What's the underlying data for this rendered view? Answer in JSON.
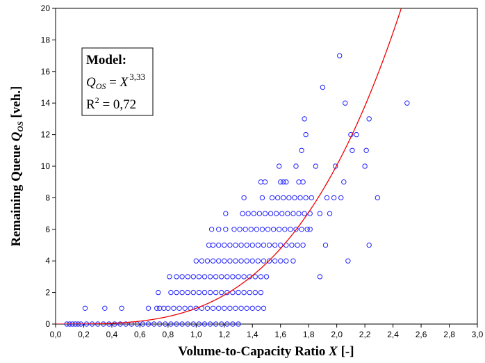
{
  "chart_data": {
    "type": "scatter",
    "xlim": [
      0.0,
      3.0
    ],
    "ylim": [
      0,
      20
    ],
    "x_ticks": [
      0.0,
      0.2,
      0.4,
      0.6,
      0.8,
      1.0,
      1.2,
      1.4,
      1.6,
      1.8,
      2.0,
      2.2,
      2.4,
      2.6,
      2.8,
      3.0
    ],
    "x_tick_labels": [
      "0,0",
      "0,2",
      "0,4",
      "0,6",
      "0,8",
      "1,0",
      "1,2",
      "1,4",
      "1,6",
      "1,8",
      "2,0",
      "2,2",
      "2,4",
      "2,6",
      "2,8",
      "3,0"
    ],
    "y_ticks": [
      0,
      2,
      4,
      6,
      8,
      10,
      12,
      14,
      16,
      18,
      20
    ],
    "y_tick_labels": [
      "0",
      "2",
      "4",
      "6",
      "8",
      "10",
      "12",
      "14",
      "16",
      "18",
      "20"
    ],
    "xlabel": {
      "main": "Volume-to-Capacity Ratio ",
      "var": "X",
      "unit": " [-]"
    },
    "ylabel": {
      "main": "Remaining Queue ",
      "var": "Q",
      "sub": "OS",
      "unit": " [veh.]"
    },
    "grid": false,
    "colors": {
      "points": "#2222ff",
      "curve": "#ee0000",
      "axis": "#000000"
    },
    "model_box": {
      "title": "Model:",
      "lhs": "Q",
      "lhs_sub": "OS",
      "equals": " = ",
      "base": "X",
      "exponent": "3,33",
      "r2_label": "R",
      "r2_sup": "2",
      "r2_value": " = 0,72"
    },
    "series": [
      {
        "type": "fit_curve",
        "equation": "y = x^3.33",
        "exponent": 3.33
      },
      {
        "type": "scatter",
        "x": [
          0.08,
          0.1,
          0.12,
          0.14,
          0.16,
          0.18,
          0.22,
          0.26,
          0.3,
          0.34,
          0.38,
          0.42,
          0.46,
          0.5,
          0.54,
          0.58,
          0.62,
          0.66,
          0.7,
          0.74,
          0.78,
          0.82,
          0.86,
          0.9,
          0.94,
          0.98,
          1.02,
          1.06,
          1.1,
          1.14,
          1.18,
          1.22,
          1.26,
          1.3,
          0.21,
          0.35,
          0.47,
          0.66,
          0.72,
          0.74,
          0.77,
          0.8,
          0.84,
          0.88,
          0.92,
          0.96,
          1.0,
          1.04,
          1.08,
          1.12,
          1.16,
          1.2,
          1.24,
          1.28,
          1.32,
          1.36,
          1.4,
          1.44,
          1.48,
          0.73,
          0.82,
          0.86,
          0.9,
          0.94,
          0.98,
          1.02,
          1.06,
          1.1,
          1.14,
          1.18,
          1.22,
          1.26,
          1.3,
          1.34,
          1.38,
          1.42,
          1.46,
          0.81,
          0.86,
          0.9,
          0.94,
          0.98,
          1.02,
          1.06,
          1.1,
          1.14,
          1.18,
          1.22,
          1.26,
          1.3,
          1.34,
          1.38,
          1.42,
          1.46,
          1.5,
          1.0,
          1.04,
          1.08,
          1.12,
          1.16,
          1.2,
          1.24,
          1.28,
          1.32,
          1.36,
          1.4,
          1.44,
          1.48,
          1.52,
          1.56,
          1.6,
          1.64,
          1.69,
          1.09,
          1.12,
          1.16,
          1.2,
          1.24,
          1.28,
          1.32,
          1.36,
          1.4,
          1.44,
          1.48,
          1.52,
          1.56,
          1.6,
          1.64,
          1.68,
          1.72,
          1.76,
          1.11,
          1.16,
          1.21,
          1.27,
          1.31,
          1.35,
          1.39,
          1.43,
          1.47,
          1.51,
          1.55,
          1.59,
          1.63,
          1.67,
          1.71,
          1.75,
          1.79,
          1.81,
          1.21,
          1.33,
          1.37,
          1.41,
          1.45,
          1.49,
          1.53,
          1.57,
          1.61,
          1.65,
          1.69,
          1.73,
          1.77,
          1.81,
          1.88,
          1.95,
          1.34,
          1.47,
          1.54,
          1.58,
          1.62,
          1.66,
          1.7,
          1.74,
          1.78,
          1.82,
          1.93,
          1.98,
          2.03,
          2.29,
          1.46,
          1.49,
          1.6,
          1.62,
          1.64,
          1.73,
          1.76,
          2.05,
          1.59,
          1.71,
          1.85,
          1.99,
          2.2,
          1.75,
          2.11,
          2.21,
          1.78,
          2.1,
          2.14,
          2.23,
          1.77,
          1.9,
          2.06,
          2.5,
          2.02,
          1.88,
          1.92,
          2.08,
          2.23
        ],
        "y": [
          0,
          0,
          0,
          0,
          0,
          0,
          0,
          0,
          0,
          0,
          0,
          0,
          0,
          0,
          0,
          0,
          0,
          0,
          0,
          0,
          0,
          0,
          0,
          0,
          0,
          0,
          0,
          0,
          0,
          0,
          0,
          0,
          0,
          0,
          1,
          1,
          1,
          1,
          1,
          1,
          1,
          1,
          1,
          1,
          1,
          1,
          1,
          1,
          1,
          1,
          1,
          1,
          1,
          1,
          1,
          1,
          1,
          1,
          1,
          2,
          2,
          2,
          2,
          2,
          2,
          2,
          2,
          2,
          2,
          2,
          2,
          2,
          2,
          2,
          2,
          2,
          2,
          3,
          3,
          3,
          3,
          3,
          3,
          3,
          3,
          3,
          3,
          3,
          3,
          3,
          3,
          3,
          3,
          3,
          3,
          4,
          4,
          4,
          4,
          4,
          4,
          4,
          4,
          4,
          4,
          4,
          4,
          4,
          4,
          4,
          4,
          4,
          4,
          5,
          5,
          5,
          5,
          5,
          5,
          5,
          5,
          5,
          5,
          5,
          5,
          5,
          5,
          5,
          5,
          5,
          5,
          6,
          6,
          6,
          6,
          6,
          6,
          6,
          6,
          6,
          6,
          6,
          6,
          6,
          6,
          6,
          6,
          6,
          6,
          7,
          7,
          7,
          7,
          7,
          7,
          7,
          7,
          7,
          7,
          7,
          7,
          7,
          7,
          7,
          7,
          8,
          8,
          8,
          8,
          8,
          8,
          8,
          8,
          8,
          8,
          8,
          8,
          8,
          8,
          9,
          9,
          9,
          9,
          9,
          9,
          9,
          9,
          10,
          10,
          10,
          10,
          10,
          11,
          11,
          11,
          12,
          12,
          12,
          13,
          13,
          15,
          14,
          14,
          17,
          3,
          5,
          4,
          5
        ]
      }
    ]
  }
}
